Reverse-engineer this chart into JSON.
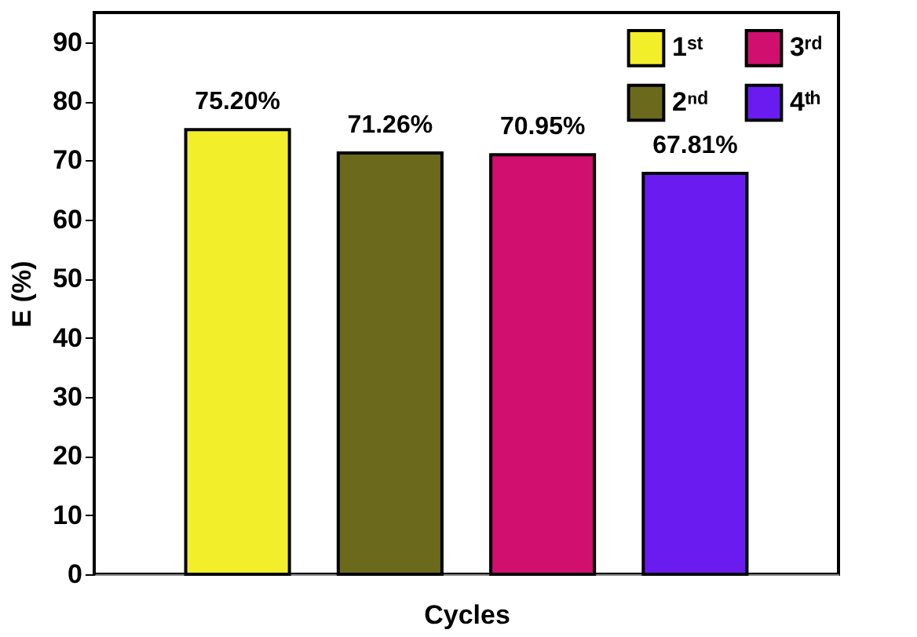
{
  "chart_data": {
    "type": "bar",
    "xlabel": "Cycles",
    "ylabel": "E (%)",
    "categories": [
      null,
      null,
      null,
      null
    ],
    "series": [
      {
        "name": "1ˢᵗ",
        "color": "#f2ef2a",
        "values": [
          75.2,
          null,
          null,
          null
        ],
        "value_labels": [
          "75.20%",
          null,
          null,
          null
        ]
      },
      {
        "name": "2ⁿᵈ",
        "color": "#6b6a1c",
        "values": [
          null,
          71.26,
          null,
          null
        ],
        "value_labels": [
          null,
          "71.26%",
          null,
          null
        ]
      },
      {
        "name": "3ʳᵈ",
        "color": "#d10f6e",
        "values": [
          null,
          null,
          70.95,
          null
        ],
        "value_labels": [
          null,
          null,
          "70.95%",
          null
        ]
      },
      {
        "name": "4ᵗʰ",
        "color": "#6a1cf0",
        "values": [
          null,
          null,
          null,
          67.81
        ],
        "value_labels": [
          null,
          null,
          null,
          "67.81%"
        ]
      }
    ],
    "ylim": [
      0,
      95
    ],
    "yticks": [
      0,
      10,
      20,
      30,
      40,
      50,
      60,
      70,
      80,
      90
    ],
    "grid": false,
    "legend": "top right",
    "tick_labels": "y"
  }
}
